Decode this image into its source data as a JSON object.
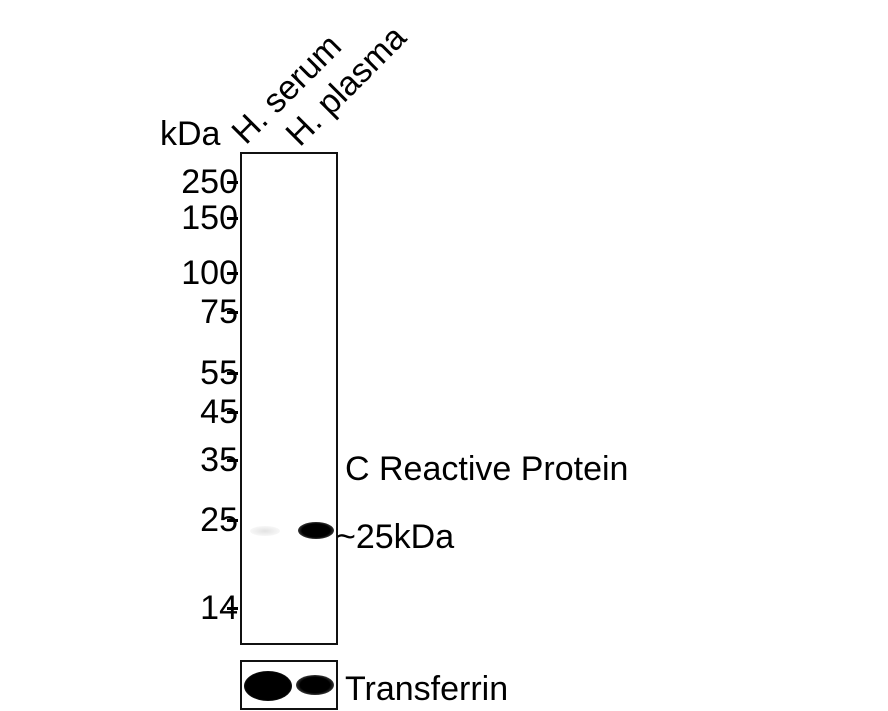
{
  "axis_unit": "kDa",
  "lanes": [
    "H. serum",
    "H. plasma"
  ],
  "markers": [
    {
      "label": "250"
    },
    {
      "label": "150"
    },
    {
      "label": "100"
    },
    {
      "label": "75"
    },
    {
      "label": "55"
    },
    {
      "label": "45"
    },
    {
      "label": "35"
    },
    {
      "label": "25"
    },
    {
      "label": "14"
    }
  ],
  "target": {
    "name": "C Reactive Protein",
    "size_label": "~25kDa"
  },
  "loading_control": {
    "name": "Transferrin"
  },
  "band_intensity": {
    "H. serum": "faint",
    "H. plasma": "strong"
  }
}
